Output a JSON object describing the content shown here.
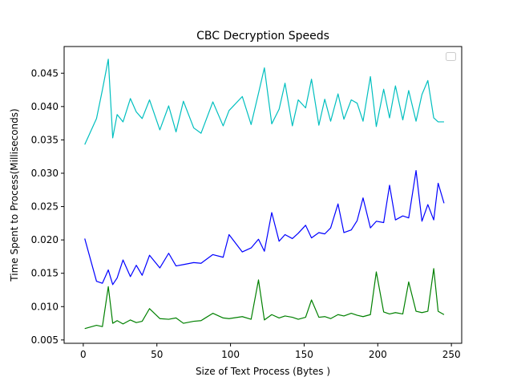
{
  "chart_data": {
    "type": "line",
    "title": "CBC Decryption Speeds",
    "xlabel": "Size of Text Process (Bytes )",
    "ylabel": "Time Spent to Process(Milliseconds)",
    "xlim": [
      -13,
      257
    ],
    "ylim": [
      0.0045,
      0.049
    ],
    "x_ticks": [
      0,
      50,
      100,
      150,
      200,
      250
    ],
    "y_ticks": [
      0.005,
      0.01,
      0.015,
      0.02,
      0.025,
      0.03,
      0.035,
      0.04,
      0.045
    ],
    "y_tick_labels": [
      "0.005",
      "0.010",
      "0.015",
      "0.020",
      "0.025",
      "0.030",
      "0.035",
      "0.040",
      "0.045"
    ],
    "grid": false,
    "legend": {
      "placement": "top-right",
      "entries": []
    },
    "x": [
      1,
      9,
      13,
      17,
      20,
      23,
      27,
      32,
      36,
      40,
      45,
      52,
      58,
      63,
      68,
      75,
      80,
      88,
      95,
      99,
      108,
      114,
      119,
      123,
      128,
      133,
      137,
      142,
      146,
      151,
      155,
      160,
      164,
      168,
      173,
      177,
      182,
      186,
      190,
      195,
      199,
      204,
      208,
      212,
      217,
      221,
      226,
      230,
      234,
      238,
      241,
      245
    ],
    "series": [
      {
        "color": "#00bfbf",
        "values": [
          0.0343,
          0.0382,
          0.0425,
          0.0471,
          0.0353,
          0.0388,
          0.0377,
          0.0412,
          0.0392,
          0.0382,
          0.041,
          0.0365,
          0.0401,
          0.0362,
          0.0408,
          0.0368,
          0.036,
          0.0407,
          0.0371,
          0.0394,
          0.0415,
          0.0373,
          0.042,
          0.0458,
          0.0374,
          0.0396,
          0.0435,
          0.0371,
          0.041,
          0.0398,
          0.0441,
          0.0372,
          0.0411,
          0.0378,
          0.0419,
          0.0381,
          0.041,
          0.0405,
          0.0378,
          0.0445,
          0.037,
          0.0426,
          0.0383,
          0.0431,
          0.038,
          0.0424,
          0.0378,
          0.0418,
          0.0439,
          0.0383,
          0.0377,
          0.0377
        ]
      },
      {
        "color": "#0000ff",
        "values": [
          0.0202,
          0.0138,
          0.0135,
          0.0155,
          0.0133,
          0.0143,
          0.017,
          0.0145,
          0.0162,
          0.0147,
          0.0177,
          0.0158,
          0.018,
          0.0161,
          0.0163,
          0.0166,
          0.0165,
          0.0178,
          0.0174,
          0.0208,
          0.0182,
          0.0188,
          0.0201,
          0.0183,
          0.0241,
          0.0198,
          0.0208,
          0.0202,
          0.021,
          0.0222,
          0.0203,
          0.0211,
          0.0209,
          0.0218,
          0.0254,
          0.0211,
          0.0215,
          0.0229,
          0.0263,
          0.0218,
          0.0228,
          0.0226,
          0.0282,
          0.023,
          0.0236,
          0.0233,
          0.0304,
          0.0228,
          0.0253,
          0.023,
          0.0285,
          0.0255
        ]
      },
      {
        "color": "#008000",
        "values": [
          0.0067,
          0.0072,
          0.007,
          0.013,
          0.0075,
          0.0079,
          0.0074,
          0.008,
          0.0076,
          0.0078,
          0.0097,
          0.0082,
          0.0081,
          0.0083,
          0.0075,
          0.0078,
          0.0079,
          0.009,
          0.0083,
          0.0082,
          0.0085,
          0.0081,
          0.014,
          0.008,
          0.0088,
          0.0083,
          0.0086,
          0.0084,
          0.0081,
          0.0084,
          0.011,
          0.0084,
          0.0085,
          0.0082,
          0.0088,
          0.0086,
          0.009,
          0.0087,
          0.0085,
          0.0088,
          0.0152,
          0.0092,
          0.0089,
          0.0091,
          0.0089,
          0.0137,
          0.0093,
          0.0091,
          0.0093,
          0.0157,
          0.0093,
          0.0088
        ]
      }
    ]
  }
}
